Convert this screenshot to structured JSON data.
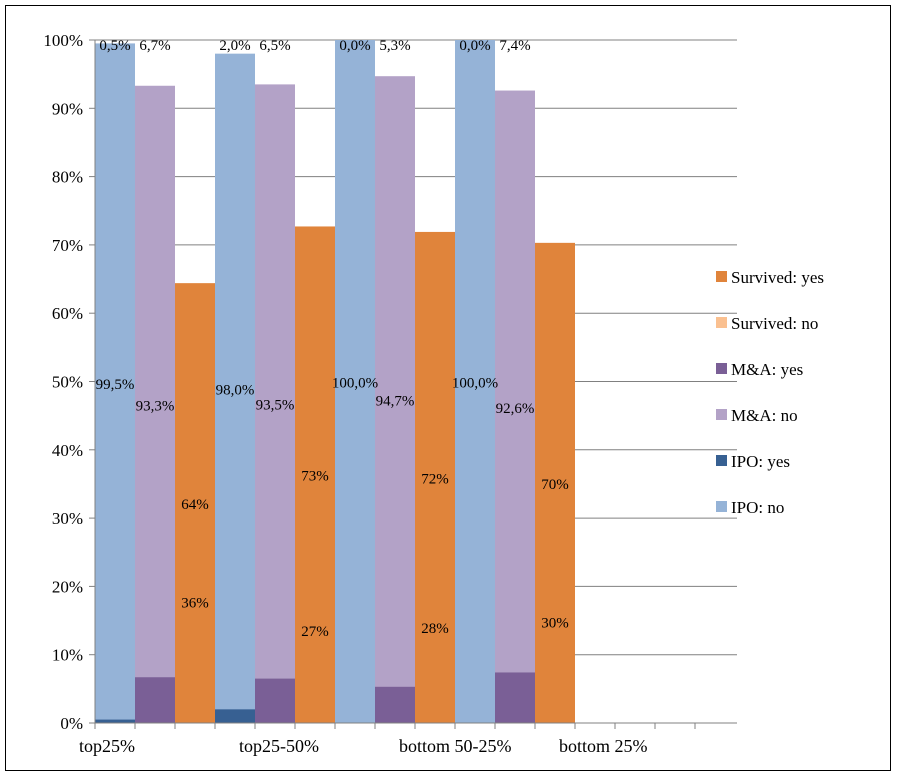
{
  "chart_data": {
    "type": "bar",
    "stacking": "stacked-percent",
    "groups": [
      "top25%",
      "top25-50%",
      "bottom 50-25%",
      "bottom 25%"
    ],
    "ylim": [
      0,
      100
    ],
    "y_ticks": [
      "0%",
      "10%",
      "20%",
      "30%",
      "40%",
      "50%",
      "60%",
      "70%",
      "80%",
      "90%",
      "100%"
    ],
    "grid": true,
    "legend_position": "right",
    "colors": {
      "ipo_no": "#95b3d7",
      "ipo_yes": "#376092",
      "ma_no": "#b3a2c7",
      "ma_yes": "#7a5f96",
      "surv_no": "#fac090",
      "surv_yes": "#e0843b"
    },
    "legend": [
      {
        "key": "surv_yes",
        "label": "Survived: yes"
      },
      {
        "key": "surv_no",
        "label": "Survived: no"
      },
      {
        "key": "ma_yes",
        "label": "M&A: yes"
      },
      {
        "key": "ma_no",
        "label": "M&A: no"
      },
      {
        "key": "ipo_yes",
        "label": "IPO: yes"
      },
      {
        "key": "ipo_no",
        "label": "IPO: no"
      }
    ],
    "bars": [
      {
        "group": 0,
        "kind": "IPO",
        "segments": [
          {
            "key": "ipo_no",
            "value": 99.5,
            "label": "99,5%"
          },
          {
            "key": "ipo_yes",
            "value": 0.5,
            "label": "0,5%"
          }
        ]
      },
      {
        "group": 0,
        "kind": "M&A",
        "segments": [
          {
            "key": "ma_no",
            "value": 93.3,
            "label": "93,3%"
          },
          {
            "key": "ma_yes",
            "value": 6.7,
            "label": "6,7%"
          }
        ]
      },
      {
        "group": 0,
        "kind": "Survived",
        "segments": [
          {
            "key": "surv_no",
            "value": 35.6,
            "label": "36%"
          },
          {
            "key": "surv_yes",
            "value": 64.4,
            "label": "64%"
          }
        ]
      },
      {
        "group": 1,
        "kind": "IPO",
        "segments": [
          {
            "key": "ipo_no",
            "value": 98.0,
            "label": "98,0%"
          },
          {
            "key": "ipo_yes",
            "value": 2.0,
            "label": "2,0%"
          }
        ]
      },
      {
        "group": 1,
        "kind": "M&A",
        "segments": [
          {
            "key": "ma_no",
            "value": 93.5,
            "label": "93,5%"
          },
          {
            "key": "ma_yes",
            "value": 6.5,
            "label": "6,5%"
          }
        ]
      },
      {
        "group": 1,
        "kind": "Survived",
        "segments": [
          {
            "key": "surv_no",
            "value": 27.3,
            "label": "27%"
          },
          {
            "key": "surv_yes",
            "value": 72.7,
            "label": "73%"
          }
        ]
      },
      {
        "group": 2,
        "kind": "IPO",
        "segments": [
          {
            "key": "ipo_no",
            "value": 100.0,
            "label": "100,0%"
          },
          {
            "key": "ipo_yes",
            "value": 0.0,
            "label": "0,0%"
          }
        ]
      },
      {
        "group": 2,
        "kind": "M&A",
        "segments": [
          {
            "key": "ma_no",
            "value": 94.7,
            "label": "94,7%"
          },
          {
            "key": "ma_yes",
            "value": 5.3,
            "label": "5,3%"
          }
        ]
      },
      {
        "group": 2,
        "kind": "Survived",
        "segments": [
          {
            "key": "surv_no",
            "value": 28.1,
            "label": "28%"
          },
          {
            "key": "surv_yes",
            "value": 71.9,
            "label": "72%"
          }
        ]
      },
      {
        "group": 3,
        "kind": "IPO",
        "segments": [
          {
            "key": "ipo_no",
            "value": 100.0,
            "label": "100,0%"
          },
          {
            "key": "ipo_yes",
            "value": 0.0,
            "label": "0,0%"
          }
        ]
      },
      {
        "group": 3,
        "kind": "M&A",
        "segments": [
          {
            "key": "ma_no",
            "value": 92.6,
            "label": "92,6%"
          },
          {
            "key": "ma_yes",
            "value": 7.4,
            "label": "7,4%"
          }
        ]
      },
      {
        "group": 3,
        "kind": "Survived",
        "segments": [
          {
            "key": "surv_no",
            "value": 29.7,
            "label": "30%"
          },
          {
            "key": "surv_yes",
            "value": 70.3,
            "label": "70%"
          }
        ]
      }
    ]
  }
}
